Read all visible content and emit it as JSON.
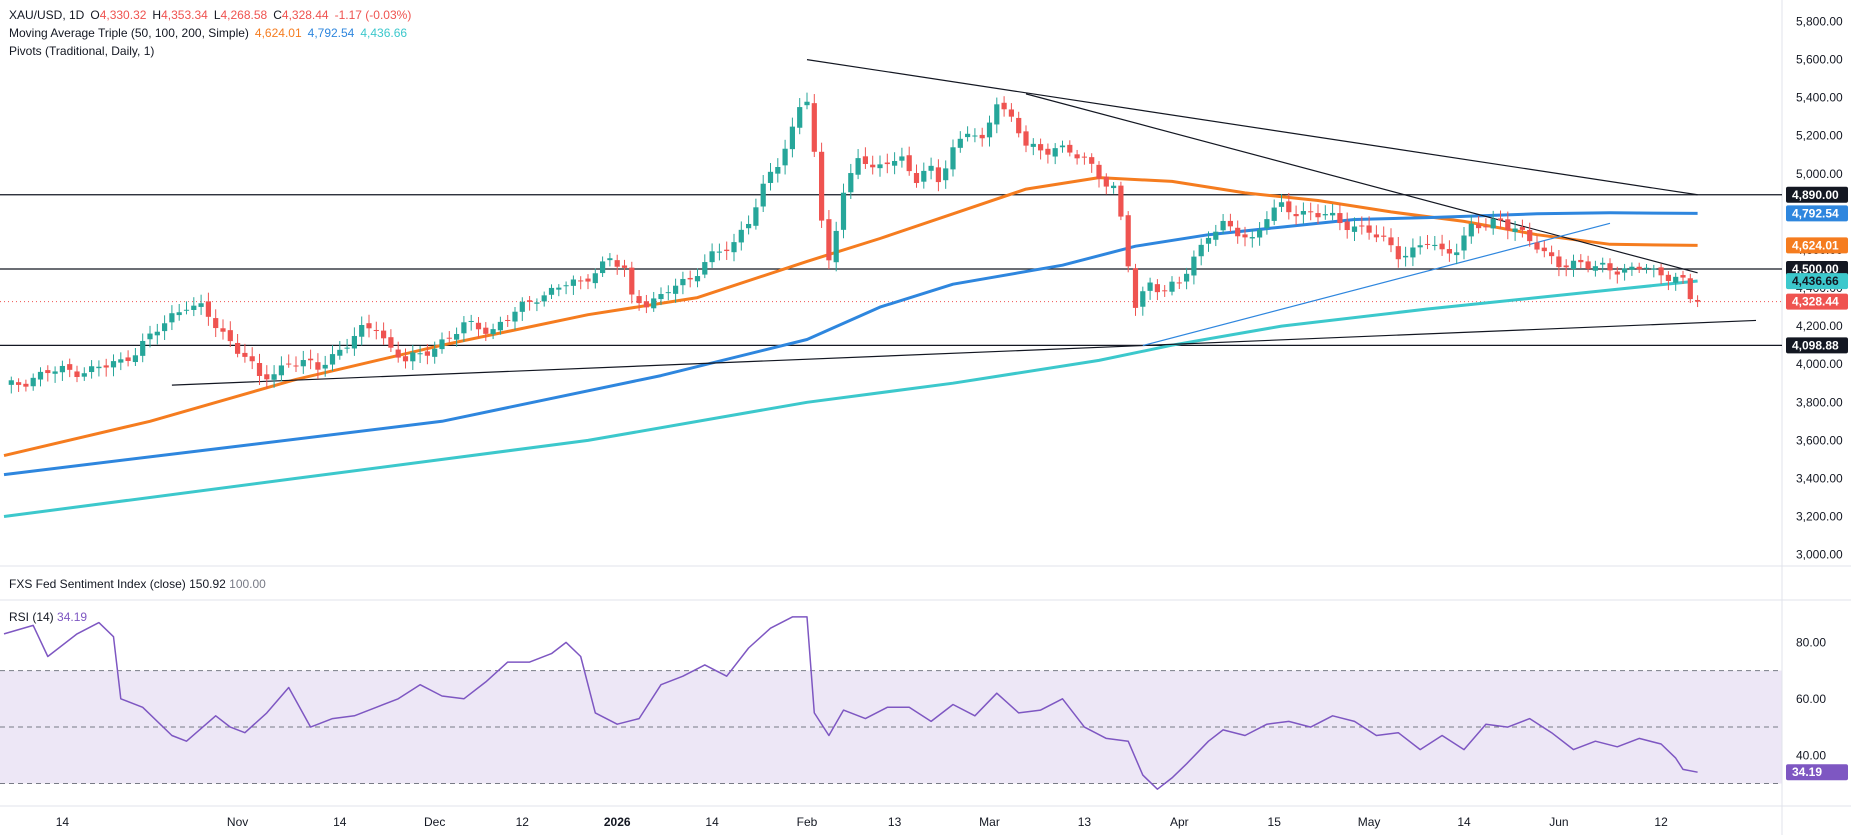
{
  "colors": {
    "up": "#26a69a",
    "down": "#ef5350",
    "ma50": "#f57c1f",
    "ma100": "#2e86de",
    "ma200": "#3cc8cc",
    "rsi": "#7e57c2",
    "rsi_band": "#ede7f6",
    "text": "#131722",
    "grid": "#e0e3eb"
  },
  "legend": {
    "symbol": "XAU/USD, 1D",
    "open_label": "O",
    "open": "4,330.32",
    "high_label": "H",
    "high": "4,353.34",
    "low_label": "L",
    "low": "4,268.58",
    "close_label": "C",
    "close": "4,328.44",
    "change": "-1.17 (-0.03%)",
    "ma_title": "Moving Average Triple (50, 100, 200, Simple)",
    "ma50": "4,624.01",
    "ma100": "4,792.54",
    "ma200": "4,436.66",
    "pivots_title": "Pivots (Traditional, Daily, 1)"
  },
  "fed_pane": {
    "title": "FXS Fed Sentiment Index (close)",
    "value": "150.92",
    "value2": "100.00"
  },
  "rsi_pane": {
    "title": "RSI (14)",
    "value": "34.19"
  },
  "chart_data": [
    {
      "type": "candlestick",
      "title": "XAU/USD, 1D",
      "x_ticks": [
        "14",
        "Nov",
        "14",
        "Dec",
        "12",
        "2026",
        "14",
        "Feb",
        "13",
        "Mar",
        "13",
        "Apr",
        "15",
        "May",
        "14",
        "Jun",
        "12"
      ],
      "y_ticks": [
        "3,000.00",
        "3,200.00",
        "3,400.00",
        "3,600.00",
        "3,800.00",
        "4,000.00",
        "4,200.00",
        "4,400.00",
        "4,600.00",
        "4,800.00",
        "5,000.00",
        "5,200.00",
        "5,400.00",
        "5,600.00",
        "5,800.00"
      ],
      "ylim": [
        2940,
        5850
      ],
      "horizontal_levels": [
        4890.0,
        4500.0,
        4098.88
      ],
      "price_labels": [
        {
          "value": 4890.0,
          "text": "4,890.00",
          "bg": "#131722",
          "fg": "#ffffff"
        },
        {
          "value": 4792.54,
          "text": "4,792.54",
          "bg": "#2e86de",
          "fg": "#ffffff"
        },
        {
          "value": 4624.01,
          "text": "4,624.01",
          "bg": "#f57c1f",
          "fg": "#ffffff"
        },
        {
          "value": 4500.0,
          "text": "4,500.00",
          "bg": "#131722",
          "fg": "#ffffff"
        },
        {
          "value": 4436.66,
          "text": "4,436.66",
          "bg": "#3cc8cc",
          "fg": "#131722"
        },
        {
          "value": 4328.44,
          "text": "4,328.44",
          "bg": "#ef5350",
          "fg": "#ffffff"
        },
        {
          "value": 4098.88,
          "text": "4,098.88",
          "bg": "#131722",
          "fg": "#ffffff"
        }
      ],
      "last_close": 4328.44,
      "close_path": [
        [
          0,
          3870
        ],
        [
          6,
          3960
        ],
        [
          12,
          3970
        ],
        [
          16,
          4010
        ],
        [
          20,
          4140
        ],
        [
          23,
          4250
        ],
        [
          25,
          4320
        ],
        [
          27,
          4290
        ],
        [
          29,
          4200
        ],
        [
          31,
          4120
        ],
        [
          33,
          4050
        ],
        [
          35,
          3920
        ],
        [
          37,
          3950
        ],
        [
          39,
          4020
        ],
        [
          41,
          4000
        ],
        [
          43,
          3980
        ],
        [
          46,
          4080
        ],
        [
          49,
          4170
        ],
        [
          51,
          4200
        ],
        [
          53,
          4080
        ],
        [
          55,
          4020
        ],
        [
          57,
          4040
        ],
        [
          59,
          4100
        ],
        [
          61,
          4140
        ],
        [
          63,
          4200
        ],
        [
          65,
          4200
        ],
        [
          67,
          4180
        ],
        [
          69,
          4240
        ],
        [
          71,
          4300
        ],
        [
          73,
          4360
        ],
        [
          75,
          4380
        ],
        [
          77,
          4420
        ],
        [
          79,
          4430
        ],
        [
          81,
          4500
        ],
        [
          83,
          4540
        ],
        [
          85,
          4500
        ],
        [
          86,
          4350
        ],
        [
          88,
          4330
        ],
        [
          90,
          4340
        ],
        [
          92,
          4420
        ],
        [
          94,
          4450
        ],
        [
          96,
          4540
        ],
        [
          98,
          4580
        ],
        [
          100,
          4640
        ],
        [
          102,
          4760
        ],
        [
          104,
          4920
        ],
        [
          106,
          5050
        ],
        [
          108,
          5240
        ],
        [
          109,
          5360
        ],
        [
          110,
          5400
        ],
        [
          111,
          5100
        ],
        [
          112,
          4720
        ],
        [
          113,
          4550
        ],
        [
          115,
          4900
        ],
        [
          117,
          5100
        ],
        [
          119,
          5000
        ],
        [
          121,
          5080
        ],
        [
          123,
          5080
        ],
        [
          125,
          4960
        ],
        [
          127,
          5020
        ],
        [
          128,
          4980
        ],
        [
          130,
          5130
        ],
        [
          132,
          5220
        ],
        [
          134,
          5160
        ],
        [
          136,
          5400
        ],
        [
          138,
          5280
        ],
        [
          140,
          5150
        ],
        [
          142,
          5120
        ],
        [
          144,
          5150
        ],
        [
          146,
          5100
        ],
        [
          148,
          5080
        ],
        [
          150,
          5000
        ],
        [
          152,
          4920
        ],
        [
          153,
          4750
        ],
        [
          154,
          4520
        ],
        [
          155,
          4300
        ],
        [
          157,
          4440
        ],
        [
          159,
          4380
        ],
        [
          161,
          4420
        ],
        [
          163,
          4560
        ],
        [
          165,
          4690
        ],
        [
          167,
          4720
        ],
        [
          169,
          4690
        ],
        [
          171,
          4660
        ],
        [
          173,
          4780
        ],
        [
          175,
          4820
        ],
        [
          177,
          4800
        ],
        [
          179,
          4800
        ],
        [
          181,
          4780
        ],
        [
          183,
          4740
        ],
        [
          185,
          4730
        ],
        [
          187,
          4700
        ],
        [
          189,
          4640
        ],
        [
          191,
          4580
        ],
        [
          193,
          4600
        ],
        [
          195,
          4640
        ],
        [
          197,
          4580
        ],
        [
          199,
          4620
        ],
        [
          201,
          4720
        ],
        [
          203,
          4720
        ],
        [
          205,
          4760
        ],
        [
          207,
          4720
        ],
        [
          209,
          4640
        ],
        [
          211,
          4580
        ],
        [
          213,
          4540
        ],
        [
          215,
          4520
        ],
        [
          217,
          4510
        ],
        [
          219,
          4520
        ],
        [
          221,
          4500
        ],
        [
          223,
          4480
        ],
        [
          225,
          4520
        ],
        [
          227,
          4470
        ],
        [
          229,
          4460
        ],
        [
          230,
          4420
        ],
        [
          231,
          4330
        ],
        [
          232,
          4328
        ]
      ],
      "series": [
        {
          "name": "MA 50",
          "color": "#f57c1f",
          "points": [
            [
              0,
              3520
            ],
            [
              20,
              3700
            ],
            [
              40,
              3920
            ],
            [
              60,
              4100
            ],
            [
              80,
              4260
            ],
            [
              95,
              4350
            ],
            [
              110,
              4540
            ],
            [
              120,
              4660
            ],
            [
              130,
              4790
            ],
            [
              140,
              4920
            ],
            [
              150,
              4980
            ],
            [
              160,
              4960
            ],
            [
              170,
              4900
            ],
            [
              180,
              4860
            ],
            [
              190,
              4800
            ],
            [
              200,
              4750
            ],
            [
              210,
              4680
            ],
            [
              220,
              4630
            ],
            [
              232,
              4624
            ]
          ]
        },
        {
          "name": "MA 100",
          "color": "#2e86de",
          "points": [
            [
              0,
              3420
            ],
            [
              30,
              3560
            ],
            [
              60,
              3700
            ],
            [
              90,
              3940
            ],
            [
              110,
              4130
            ],
            [
              120,
              4300
            ],
            [
              130,
              4420
            ],
            [
              145,
              4520
            ],
            [
              155,
              4620
            ],
            [
              165,
              4680
            ],
            [
              175,
              4720
            ],
            [
              185,
              4760
            ],
            [
              195,
              4770
            ],
            [
              210,
              4790
            ],
            [
              220,
              4795
            ],
            [
              232,
              4792
            ]
          ]
        },
        {
          "name": "MA 200",
          "color": "#3cc8cc",
          "points": [
            [
              0,
              3200
            ],
            [
              40,
              3400
            ],
            [
              80,
              3600
            ],
            [
              110,
              3800
            ],
            [
              130,
              3900
            ],
            [
              150,
              4020
            ],
            [
              160,
              4100
            ],
            [
              175,
              4200
            ],
            [
              195,
              4290
            ],
            [
              210,
              4350
            ],
            [
              220,
              4390
            ],
            [
              232,
              4437
            ]
          ]
        }
      ],
      "trendlines": [
        [
          [
            23,
            3890
          ],
          [
            156,
            4098
          ]
        ],
        [
          [
            156,
            4098
          ],
          [
            240,
            4230
          ]
        ],
        [
          [
            110,
            5600
          ],
          [
            232,
            4890
          ]
        ],
        [
          [
            140,
            5420
          ],
          [
            232,
            4480
          ]
        ],
        [
          [
            156,
            4098
          ],
          [
            220,
            4740
          ]
        ]
      ]
    },
    {
      "type": "line",
      "title": "RSI (14)",
      "ylim": [
        27,
        95
      ],
      "y_ticks": [
        "40.00",
        "60.00",
        "80.00"
      ],
      "levels": [
        70,
        50,
        30
      ],
      "series": [
        {
          "name": "RSI (14)",
          "color": "#7e57c2",
          "points": [
            [
              0,
              83
            ],
            [
              4,
              86
            ],
            [
              6,
              75
            ],
            [
              10,
              83
            ],
            [
              13,
              87
            ],
            [
              15,
              82
            ],
            [
              16,
              60
            ],
            [
              19,
              57
            ],
            [
              23,
              47
            ],
            [
              25,
              45
            ],
            [
              29,
              54
            ],
            [
              31,
              50
            ],
            [
              33,
              48
            ],
            [
              36,
              55
            ],
            [
              39,
              64
            ],
            [
              42,
              50
            ],
            [
              45,
              53
            ],
            [
              48,
              54
            ],
            [
              51,
              57
            ],
            [
              54,
              60
            ],
            [
              57,
              65
            ],
            [
              60,
              61
            ],
            [
              63,
              60
            ],
            [
              66,
              66
            ],
            [
              69,
              73
            ],
            [
              72,
              73
            ],
            [
              75,
              76
            ],
            [
              77,
              80
            ],
            [
              79,
              75
            ],
            [
              81,
              55
            ],
            [
              84,
              51
            ],
            [
              87,
              53
            ],
            [
              90,
              65
            ],
            [
              93,
              68
            ],
            [
              96,
              72
            ],
            [
              99,
              68
            ],
            [
              102,
              78
            ],
            [
              105,
              85
            ],
            [
              108,
              89
            ],
            [
              110,
              89
            ],
            [
              111,
              55
            ],
            [
              113,
              47
            ],
            [
              115,
              56
            ],
            [
              118,
              53
            ],
            [
              121,
              57
            ],
            [
              124,
              57
            ],
            [
              127,
              52
            ],
            [
              130,
              58
            ],
            [
              133,
              54
            ],
            [
              136,
              62
            ],
            [
              139,
              55
            ],
            [
              142,
              56
            ],
            [
              145,
              60
            ],
            [
              148,
              50
            ],
            [
              151,
              46
            ],
            [
              154,
              45
            ],
            [
              156,
              33
            ],
            [
              158,
              28
            ],
            [
              160,
              32
            ],
            [
              162,
              37
            ],
            [
              165,
              45
            ],
            [
              167,
              49
            ],
            [
              170,
              47
            ],
            [
              173,
              51
            ],
            [
              176,
              52
            ],
            [
              179,
              50
            ],
            [
              182,
              54
            ],
            [
              185,
              52
            ],
            [
              188,
              47
            ],
            [
              191,
              48
            ],
            [
              194,
              42
            ],
            [
              197,
              47
            ],
            [
              200,
              42
            ],
            [
              203,
              51
            ],
            [
              206,
              50
            ],
            [
              209,
              53
            ],
            [
              212,
              48
            ],
            [
              215,
              42
            ],
            [
              218,
              45
            ],
            [
              221,
              43
            ],
            [
              224,
              46
            ],
            [
              227,
              44
            ],
            [
              229,
              39
            ],
            [
              230,
              35
            ],
            [
              232,
              34
            ]
          ]
        }
      ]
    }
  ]
}
